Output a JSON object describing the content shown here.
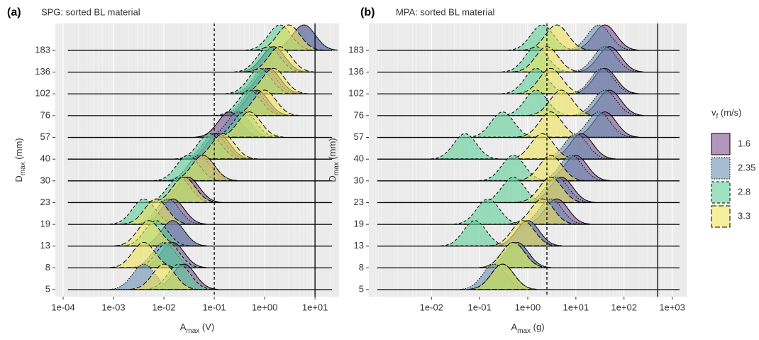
{
  "chart_data": [
    {
      "type": "ridgeline",
      "panel": "(a)",
      "title": "SPG: sorted BL material",
      "x_label": {
        "main": "A",
        "sub": "max",
        "rest": " (V)"
      },
      "y_label": {
        "main": "D",
        "sub": "max",
        "rest": " (mm)"
      },
      "log_x": true,
      "grid": true,
      "xlim": [
        7e-05,
        30
      ],
      "xticks": [
        {
          "value": 0.0001,
          "label": "1e-04"
        },
        {
          "value": 0.001,
          "label": "1e-03"
        },
        {
          "value": 0.01,
          "label": "1e-02"
        },
        {
          "value": 0.1,
          "label": "1e-01"
        },
        {
          "value": 1,
          "label": "1e+00"
        },
        {
          "value": 10,
          "label": "1e+01"
        }
      ],
      "categories": [
        "5",
        "8",
        "13",
        "19",
        "23",
        "30",
        "40",
        "57",
        "76",
        "102",
        "136",
        "183"
      ],
      "vlines": [
        {
          "value": 0.1,
          "style": "dashed"
        },
        {
          "value": 10,
          "style": "solid"
        }
      ],
      "series": [
        {
          "values": [
            0.025,
            0.015,
            0.015,
            0.015,
            0.03,
            0.06,
            0.12,
            0.2,
            0.7,
            1.2,
            1.5,
            6
          ]
        },
        {
          "values": [
            0.004,
            0.01,
            0.015,
            0.012,
            0.025,
            0.05,
            0.1,
            0.3,
            0.6,
            1.0,
            1.5,
            6
          ]
        },
        {
          "values": [
            0.02,
            0.012,
            0.007,
            0.004,
            0.02,
            0.03,
            0.08,
            0.4,
            0.5,
            0.8,
            1.2,
            2
          ]
        },
        {
          "values": [
            0.01,
            0.004,
            0.005,
            0.007,
            0.025,
            0.06,
            0.15,
            0.5,
            1.0,
            1.5,
            2,
            3
          ]
        }
      ]
    },
    {
      "type": "ridgeline",
      "panel": "(b)",
      "title": "MPA: sorted BL material",
      "x_label": {
        "main": "A",
        "sub": "max",
        "rest": " (g)"
      },
      "y_label": {
        "main": "D",
        "sub": "max",
        "rest": " (mm)"
      },
      "log_x": true,
      "grid": true,
      "xlim": [
        0.0005,
        2000
      ],
      "xticks": [
        {
          "value": 0.01,
          "label": "1e-02"
        },
        {
          "value": 0.1,
          "label": "1e-01"
        },
        {
          "value": 1,
          "label": "1e+00"
        },
        {
          "value": 10,
          "label": "1e+01"
        },
        {
          "value": 100,
          "label": "1e+02"
        },
        {
          "value": 1000,
          "label": "1e+03"
        }
      ],
      "categories": [
        "5",
        "8",
        "13",
        "19",
        "23",
        "30",
        "40",
        "57",
        "76",
        "102",
        "136",
        "183"
      ],
      "vlines": [
        {
          "value": 2.5,
          "style": "dashed"
        },
        {
          "value": 500,
          "style": "solid"
        }
      ],
      "series": [
        {
          "values": [
            0.3,
            0.6,
            1.0,
            4,
            5,
            10,
            13,
            40,
            50,
            40,
            50,
            40
          ]
        },
        {
          "values": [
            0.2,
            0.6,
            1,
            3,
            4,
            8,
            10,
            30,
            40,
            35,
            40,
            30
          ]
        },
        {
          "values": [
            0.3,
            0.5,
            0.08,
            0.15,
            0.5,
            0.5,
            0.05,
            0.3,
            1.5,
            1.5,
            1.5,
            2
          ]
        },
        {
          "values": [
            0.3,
            0.5,
            0.8,
            2,
            3,
            3,
            2,
            3,
            5,
            3,
            2.5,
            4
          ]
        }
      ]
    }
  ],
  "legend": {
    "title": {
      "main": "v",
      "sub": "f",
      "rest": " (m/s)"
    },
    "position": "right",
    "items": [
      {
        "name": "1.6",
        "color": "#7b4f8f",
        "line": "solid"
      },
      {
        "name": "2.35",
        "color": "#6b8fb0",
        "line": "dotted"
      },
      {
        "name": "2.8",
        "color": "#5fcf9a",
        "line": "dashed"
      },
      {
        "name": "3.3",
        "color": "#efe25c",
        "line": "longdash"
      }
    ]
  }
}
